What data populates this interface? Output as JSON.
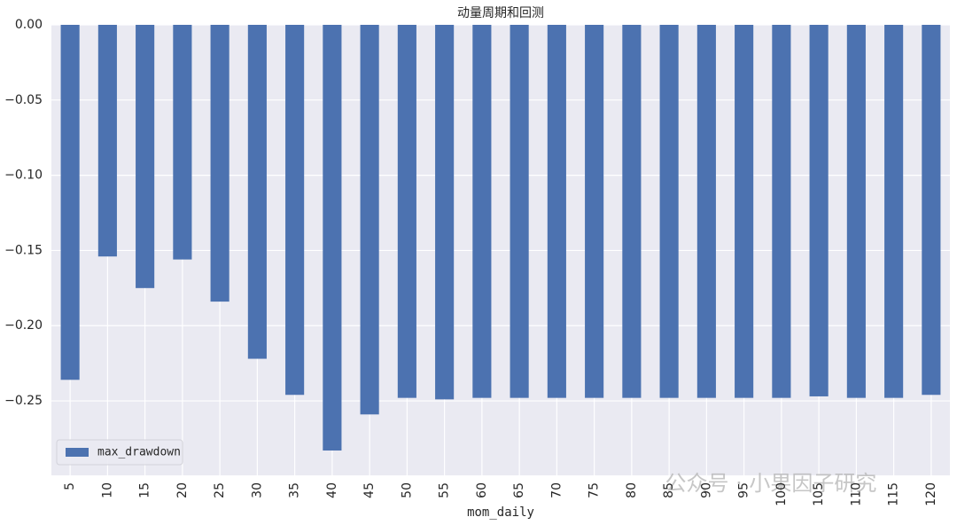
{
  "chart_data": {
    "type": "bar",
    "title": "动量周期和回测",
    "x_label": "mom_daily",
    "categories": [
      "5",
      "10",
      "15",
      "20",
      "25",
      "30",
      "35",
      "40",
      "45",
      "50",
      "55",
      "60",
      "65",
      "70",
      "75",
      "80",
      "85",
      "90",
      "95",
      "100",
      "105",
      "110",
      "115",
      "120"
    ],
    "series": [
      {
        "name": "max_drawdown",
        "color": "#4c72b0",
        "values": [
          -0.236,
          -0.154,
          -0.175,
          -0.156,
          -0.184,
          -0.222,
          -0.246,
          -0.283,
          -0.259,
          -0.248,
          -0.249,
          -0.248,
          -0.248,
          -0.248,
          -0.248,
          -0.248,
          -0.248,
          -0.248,
          -0.248,
          -0.248,
          -0.247,
          -0.248,
          -0.248,
          -0.246
        ]
      }
    ],
    "ylim": [
      -0.2995,
      0
    ],
    "yticks": [
      {
        "value": 0,
        "label": "0.00"
      },
      {
        "value": -0.05,
        "label": "−0.05"
      },
      {
        "value": -0.1,
        "label": "−0.10"
      },
      {
        "value": -0.15,
        "label": "−0.15"
      },
      {
        "value": -0.2,
        "label": "−0.20"
      },
      {
        "value": -0.25,
        "label": "−0.25"
      }
    ],
    "grid": true,
    "legend": "lower left",
    "watermark": "公众号 · 小果因子研究"
  }
}
